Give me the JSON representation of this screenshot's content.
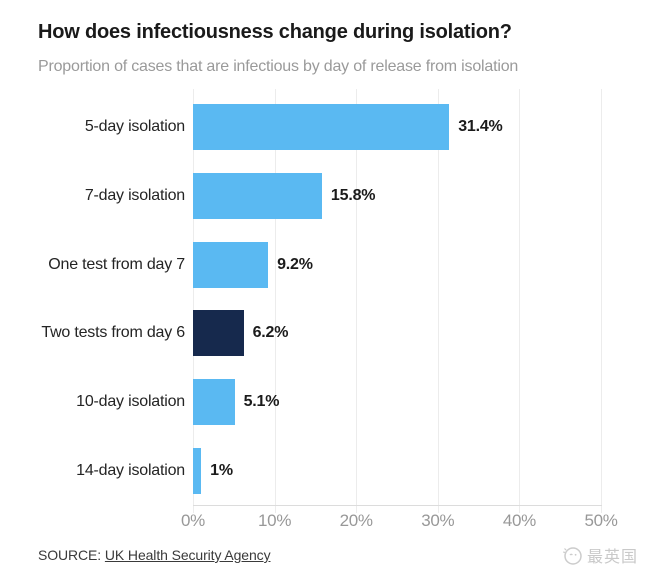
{
  "header": {
    "title": "How does infectiousness change during isolation?",
    "subtitle": "Proportion of cases that are infectious by day of release from isolation"
  },
  "chart_data": {
    "type": "bar",
    "orientation": "horizontal",
    "title": "How does infectiousness change during isolation?",
    "subtitle": "Proportion of cases that are infectious by day of release from isolation",
    "categories": [
      "5-day isolation",
      "7-day isolation",
      "One test from day 7",
      "Two tests from day 6",
      "10-day isolation",
      "14-day isolation"
    ],
    "values": [
      31.4,
      15.8,
      9.2,
      6.2,
      5.1,
      1
    ],
    "value_labels": [
      "31.4%",
      "15.8%",
      "9.2%",
      "6.2%",
      "5.1%",
      "1%"
    ],
    "bar_colors": [
      "#5AB9F2",
      "#5AB9F2",
      "#5AB9F2",
      "#16294D",
      "#5AB9F2",
      "#5AB9F2"
    ],
    "xlabel": "",
    "ylabel": "",
    "xlim": [
      0,
      50
    ],
    "x_ticks": [
      "0%",
      "10%",
      "20%",
      "30%",
      "40%",
      "50%"
    ],
    "x_tick_values": [
      0,
      10,
      20,
      30,
      40,
      50
    ],
    "grid": "vertical gridlines on",
    "legend": "none"
  },
  "colors": {
    "bar_blue": "#5AB9F2",
    "bar_navy": "#16294D",
    "gridline": "#ececec",
    "axis_line": "#dcdcdc",
    "title_text": "#1a1a1a",
    "subtitle_text": "#9a9a9a",
    "axis_label_text": "#989898",
    "watermark_text": "#c9c9c9"
  },
  "footer": {
    "source_prefix": "SOURCE:",
    "source_link": "UK Health Security Agency",
    "watermark": "最英国"
  }
}
